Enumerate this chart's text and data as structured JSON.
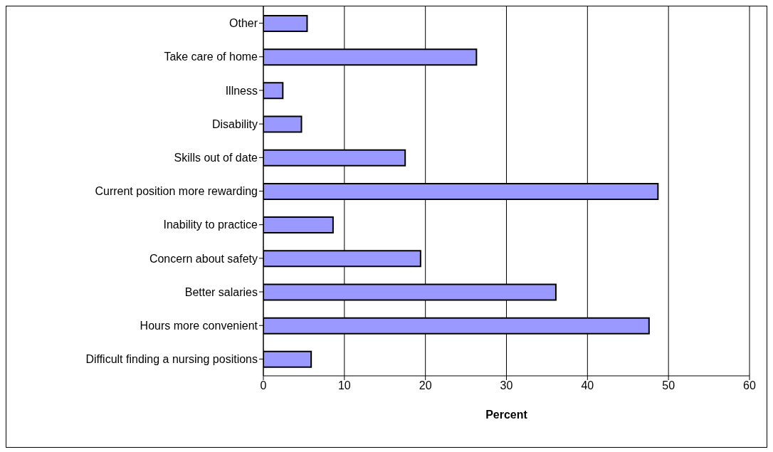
{
  "chart_data": {
    "type": "bar",
    "orientation": "horizontal",
    "xlabel": "Percent",
    "categories": [
      "Other",
      "Take care of home",
      "Illness",
      "Disability",
      "Skills out of date",
      "Current position more rewarding",
      "Inability to practice",
      "Concern about safety",
      "Better salaries",
      "Hours more convenient",
      "Difficult finding a nursing positions"
    ],
    "values": [
      5.4,
      26.3,
      2.4,
      4.7,
      17.5,
      48.7,
      8.6,
      19.4,
      36.1,
      47.6,
      5.9
    ],
    "color": "#9999ff",
    "xlim": [
      0,
      60
    ],
    "xticks": [
      0,
      10,
      20,
      30,
      40,
      50,
      60
    ],
    "grid": "x"
  }
}
